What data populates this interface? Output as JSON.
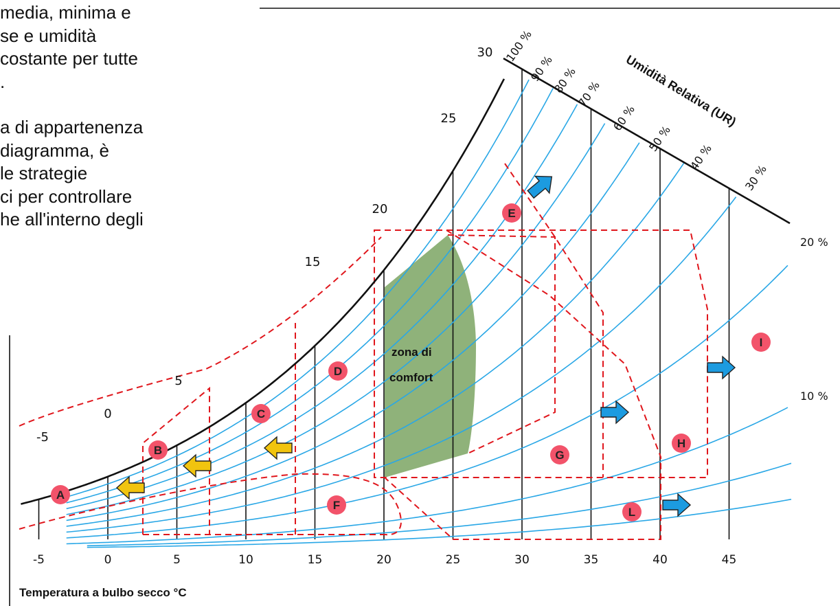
{
  "paragraph": {
    "lines": [
      "media, minima e",
      "se e umidità",
      "costante per tutte",
      ".",
      "a di appartenenza",
      "diagramma, è",
      "le strategie",
      "ci per controllare",
      "he all'interno degli"
    ]
  },
  "chart_data": {
    "type": "diagram",
    "title": "",
    "xlabel": "Temperatura a bulbo secco °C",
    "x_ticks": [
      "-5",
      "0",
      "5",
      "10",
      "15",
      "20",
      "25",
      "30",
      "35",
      "40",
      "45"
    ],
    "saturation_curve_labels": [
      "-5",
      "0",
      "5",
      "15",
      "20",
      "25",
      "30"
    ],
    "relative_humidity_title": "Umidità Relativa (UR)",
    "relative_humidity_labels": [
      "100 %",
      "90 %",
      "80 %",
      "70 %",
      "60 %",
      "50 %",
      "40 %",
      "30 %",
      "20 %",
      "10 %"
    ],
    "zones": [
      "A",
      "B",
      "C",
      "D",
      "E",
      "F",
      "G",
      "H",
      "I",
      "L"
    ],
    "comfort_zone_label": [
      "zona di",
      "comfort"
    ],
    "colors": {
      "rh_curves": "#29a7e6",
      "zone_borders": "#e0161c",
      "comfort_fill": "#8fb27a",
      "zone_markers": "#f2536a",
      "heating_arrows": "#f1c40f",
      "cooling_arrows": "#1c9be0"
    }
  }
}
